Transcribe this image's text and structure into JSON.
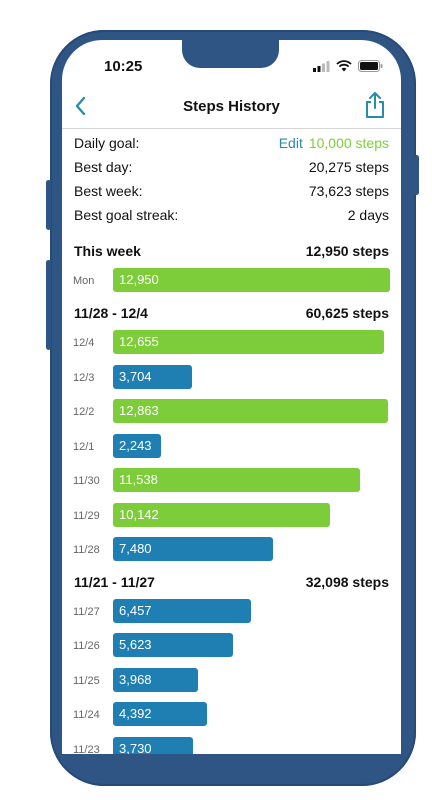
{
  "status": {
    "time": "10:25"
  },
  "nav": {
    "title": "Steps History"
  },
  "summary": {
    "daily_goal_label": "Daily goal:",
    "edit_label": "Edit",
    "daily_goal_value": "10,000 steps",
    "best_day_label": "Best day:",
    "best_day_value": "20,275 steps",
    "best_week_label": "Best week:",
    "best_week_value": "73,623 steps",
    "best_streak_label": "Best goal streak:",
    "best_streak_value": "2 days"
  },
  "colors": {
    "goal_met": "#7dcc3a",
    "goal_missed": "#1f7fb3",
    "accent": "#2a8ba8"
  },
  "weeks": [
    {
      "title": "This week",
      "total": "12,950 steps",
      "days": [
        {
          "label": "Mon",
          "value": "12,950",
          "steps": 12950
        }
      ]
    },
    {
      "title": "11/28 - 12/4",
      "total": "60,625 steps",
      "days": [
        {
          "label": "12/4",
          "value": "12,655",
          "steps": 12655
        },
        {
          "label": "12/3",
          "value": "3,704",
          "steps": 3704
        },
        {
          "label": "12/2",
          "value": "12,863",
          "steps": 12863
        },
        {
          "label": "12/1",
          "value": "2,243",
          "steps": 2243
        },
        {
          "label": "11/30",
          "value": "11,538",
          "steps": 11538
        },
        {
          "label": "11/29",
          "value": "10,142",
          "steps": 10142
        },
        {
          "label": "11/28",
          "value": "7,480",
          "steps": 7480
        }
      ]
    },
    {
      "title": "11/21 - 11/27",
      "total": "32,098 steps",
      "days": [
        {
          "label": "11/27",
          "value": "6,457",
          "steps": 6457
        },
        {
          "label": "11/26",
          "value": "5,623",
          "steps": 5623
        },
        {
          "label": "11/25",
          "value": "3,968",
          "steps": 3968
        },
        {
          "label": "11/24",
          "value": "4,392",
          "steps": 4392
        },
        {
          "label": "11/23",
          "value": "3,730",
          "steps": 3730
        }
      ]
    }
  ]
}
